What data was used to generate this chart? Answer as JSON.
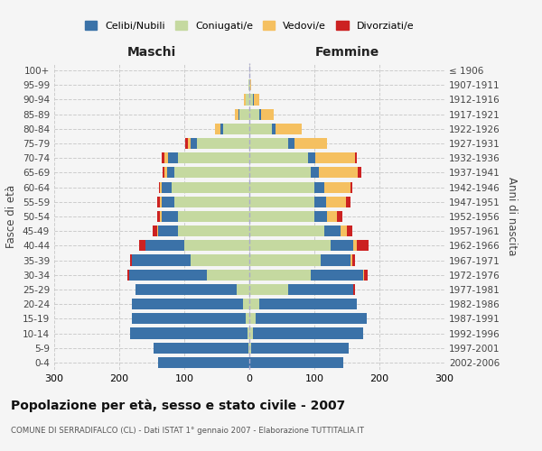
{
  "age_groups": [
    "0-4",
    "5-9",
    "10-14",
    "15-19",
    "20-24",
    "25-29",
    "30-34",
    "35-39",
    "40-44",
    "45-49",
    "50-54",
    "55-59",
    "60-64",
    "65-69",
    "70-74",
    "75-79",
    "80-84",
    "85-89",
    "90-94",
    "95-99",
    "100+"
  ],
  "birth_years": [
    "2002-2006",
    "1997-2001",
    "1992-1996",
    "1987-1991",
    "1982-1986",
    "1977-1981",
    "1972-1976",
    "1967-1971",
    "1962-1966",
    "1957-1961",
    "1952-1956",
    "1947-1951",
    "1942-1946",
    "1937-1941",
    "1932-1936",
    "1927-1931",
    "1922-1926",
    "1917-1921",
    "1912-1916",
    "1907-1911",
    "≤ 1906"
  ],
  "males": {
    "celibi": [
      140,
      145,
      180,
      175,
      170,
      155,
      120,
      90,
      60,
      30,
      25,
      20,
      15,
      12,
      15,
      10,
      5,
      2,
      1,
      0,
      0
    ],
    "coniugati": [
      0,
      2,
      3,
      5,
      10,
      20,
      65,
      90,
      100,
      110,
      110,
      115,
      120,
      115,
      110,
      80,
      40,
      15,
      5,
      1,
      0
    ],
    "vedovi": [
      0,
      0,
      0,
      0,
      0,
      0,
      0,
      0,
      0,
      1,
      2,
      2,
      2,
      3,
      5,
      5,
      8,
      5,
      2,
      0,
      0
    ],
    "divorziati": [
      0,
      0,
      0,
      0,
      0,
      0,
      3,
      3,
      10,
      8,
      5,
      5,
      2,
      3,
      5,
      3,
      0,
      0,
      0,
      0,
      0
    ]
  },
  "females": {
    "nubili": [
      145,
      150,
      170,
      170,
      150,
      100,
      80,
      45,
      35,
      25,
      20,
      18,
      15,
      12,
      12,
      10,
      5,
      3,
      2,
      0,
      0
    ],
    "coniugate": [
      0,
      3,
      5,
      10,
      15,
      60,
      95,
      110,
      125,
      115,
      100,
      100,
      100,
      95,
      90,
      60,
      35,
      15,
      5,
      2,
      0
    ],
    "vedove": [
      0,
      0,
      0,
      0,
      0,
      0,
      2,
      3,
      5,
      10,
      15,
      30,
      40,
      60,
      60,
      50,
      40,
      20,
      8,
      1,
      0
    ],
    "divorziate": [
      0,
      0,
      0,
      0,
      0,
      3,
      5,
      5,
      18,
      8,
      8,
      8,
      3,
      5,
      3,
      0,
      0,
      0,
      0,
      0,
      0
    ]
  },
  "colors": {
    "celibi": "#3b72a8",
    "coniugati": "#c5d9a0",
    "vedovi": "#f5c060",
    "divorziati": "#cc2222"
  },
  "title": "Popolazione per età, sesso e stato civile - 2007",
  "subtitle": "COMUNE DI SERRADIFALCO (CL) - Dati ISTAT 1° gennaio 2007 - Elaborazione TUTTITALIA.IT",
  "xlabel_left": "Maschi",
  "xlabel_right": "Femmine",
  "ylabel_left": "Fasce di età",
  "ylabel_right": "Anni di nascita",
  "xlim": 300,
  "legend_labels": [
    "Celibi/Nubili",
    "Coniugati/e",
    "Vedovi/e",
    "Divorziati/e"
  ],
  "bg_color": "#f5f5f5"
}
